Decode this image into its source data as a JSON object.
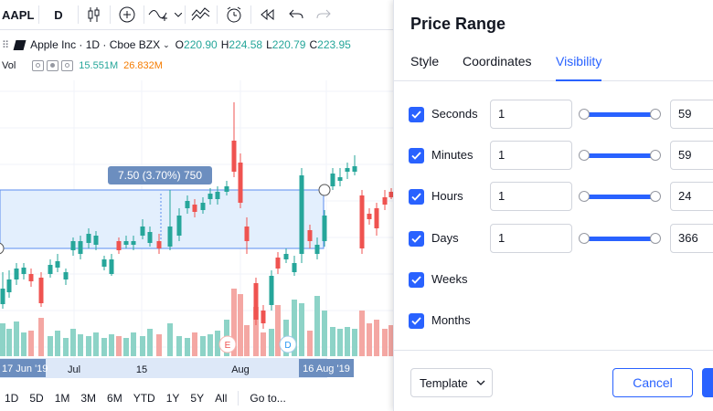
{
  "toolbar": {
    "symbol": "AAPL",
    "interval": "D",
    "icons": [
      "bar-type-icon",
      "add-indicator-icon",
      "drawing-tools-icon",
      "chevron-down-icon",
      "compare-icon",
      "alert-icon",
      "replay-icon",
      "undo-icon",
      "redo-icon"
    ]
  },
  "legend": {
    "title": "Apple Inc · 1D · Cboe BZX",
    "open_k": "O",
    "open_v": "220.90",
    "high_k": "H",
    "high_v": "224.58",
    "low_k": "L",
    "low_v": "220.79",
    "close_k": "C",
    "close_v": "223.95",
    "vol_label": "Vol",
    "vol_1": "15.551M",
    "vol_2": "26.832M"
  },
  "measure_label": "7.50 (3.70%) 750",
  "time_axis": {
    "labels": [
      "17 Jun '19",
      "Jul",
      "15",
      "Aug",
      "16 Aug '19"
    ]
  },
  "event_markers": [
    "E",
    "D"
  ],
  "range_bar": [
    "1D",
    "5D",
    "1M",
    "3M",
    "6M",
    "YTD",
    "1Y",
    "5Y",
    "All",
    "Go to..."
  ],
  "dialog": {
    "title": "Price Range",
    "tabs": [
      "Style",
      "Coordinates",
      "Visibility"
    ],
    "active_tab": "Visibility",
    "rows": [
      {
        "label": "Seconds",
        "from": "1",
        "to": "59"
      },
      {
        "label": "Minutes",
        "from": "1",
        "to": "59"
      },
      {
        "label": "Hours",
        "from": "1",
        "to": "24"
      },
      {
        "label": "Days",
        "from": "1",
        "to": "366"
      },
      {
        "label": "Weeks"
      },
      {
        "label": "Months"
      }
    ],
    "template_label": "Template",
    "cancel_label": "Cancel"
  },
  "colors": {
    "accent": "#2962ff",
    "up": "#26a69a",
    "down": "#ef5350",
    "vol_up": "#8dd3c7",
    "vol_down": "#f4a7a3",
    "measure_fill": "#e3effd"
  }
}
